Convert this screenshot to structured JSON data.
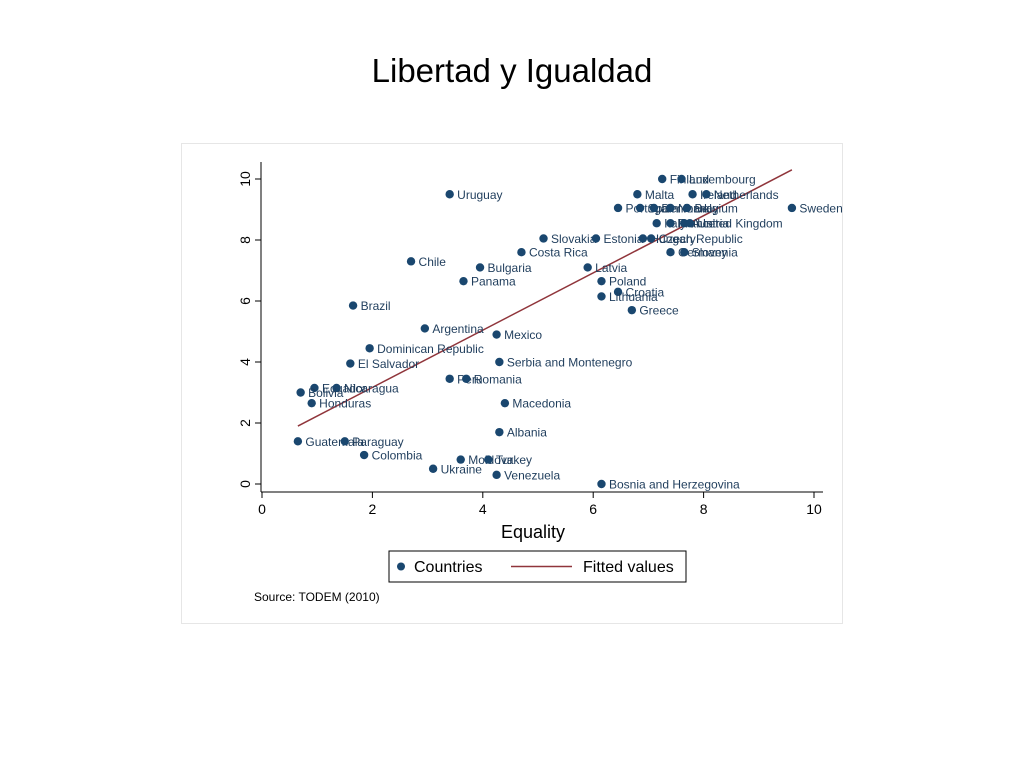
{
  "slide": {
    "title": "Libertad y Igualdad"
  },
  "colors": {
    "marker": "#1a476f",
    "fit_line": "#90353b",
    "label": "#1f3d5c"
  },
  "chart_data": {
    "type": "scatter",
    "xlabel": "Equality",
    "ylabel": "",
    "xlim": [
      0,
      10
    ],
    "ylim": [
      0,
      10
    ],
    "xticks": [
      "0",
      "2",
      "4",
      "6",
      "8",
      "10"
    ],
    "yticks": [
      "0",
      "2",
      "4",
      "6",
      "8",
      "10"
    ],
    "grid": false,
    "legend": {
      "position": "bottom",
      "entries": [
        "Countries",
        "Fitted values"
      ]
    },
    "source": "Source: TODEM (2010)",
    "series": [
      {
        "name": "Countries",
        "points": [
          {
            "label": "Finland",
            "x": 7.25,
            "y": 10.0
          },
          {
            "label": "Luxembourg",
            "x": 7.6,
            "y": 10.0
          },
          {
            "label": "Uruguay",
            "x": 3.4,
            "y": 9.5
          },
          {
            "label": "Malta",
            "x": 6.8,
            "y": 9.5
          },
          {
            "label": "Ireland",
            "x": 7.8,
            "y": 9.5
          },
          {
            "label": "Netherlands",
            "x": 8.05,
            "y": 9.5
          },
          {
            "label": "Portugal",
            "x": 6.45,
            "y": 9.05
          },
          {
            "label": "Spain",
            "x": 6.85,
            "y": 9.05
          },
          {
            "label": "Denmark",
            "x": 7.1,
            "y": 9.05
          },
          {
            "label": "Norway",
            "x": 7.4,
            "y": 9.05
          },
          {
            "label": "Belgium",
            "x": 7.7,
            "y": 9.05
          },
          {
            "label": "Sweden",
            "x": 9.6,
            "y": 9.05
          },
          {
            "label": "Italy",
            "x": 7.15,
            "y": 8.55
          },
          {
            "label": "France",
            "x": 7.4,
            "y": 8.55
          },
          {
            "label": "Austria",
            "x": 7.65,
            "y": 8.55
          },
          {
            "label": "United Kingdom",
            "x": 7.75,
            "y": 8.55
          },
          {
            "label": "Slovakia",
            "x": 5.1,
            "y": 8.05
          },
          {
            "label": "Estonia",
            "x": 6.05,
            "y": 8.05
          },
          {
            "label": "Hungary",
            "x": 6.9,
            "y": 8.05
          },
          {
            "label": "Czech Republic",
            "x": 7.05,
            "y": 8.05
          },
          {
            "label": "Costa Rica",
            "x": 4.7,
            "y": 7.6
          },
          {
            "label": "Germany",
            "x": 7.4,
            "y": 7.6
          },
          {
            "label": "Slovenia",
            "x": 7.65,
            "y": 7.6
          },
          {
            "label": "Chile",
            "x": 2.7,
            "y": 7.3
          },
          {
            "label": "Bulgaria",
            "x": 3.95,
            "y": 7.1
          },
          {
            "label": "Latvia",
            "x": 5.9,
            "y": 7.1
          },
          {
            "label": "Panama",
            "x": 3.65,
            "y": 6.65
          },
          {
            "label": "Poland",
            "x": 6.15,
            "y": 6.65
          },
          {
            "label": "Croatia",
            "x": 6.45,
            "y": 6.3
          },
          {
            "label": "Lithuania",
            "x": 6.15,
            "y": 6.15
          },
          {
            "label": "Brazil",
            "x": 1.65,
            "y": 5.85
          },
          {
            "label": "Greece",
            "x": 6.7,
            "y": 5.7
          },
          {
            "label": "Argentina",
            "x": 2.95,
            "y": 5.1
          },
          {
            "label": "Mexico",
            "x": 4.25,
            "y": 4.9
          },
          {
            "label": "Dominican Republic",
            "x": 1.95,
            "y": 4.45
          },
          {
            "label": "Serbia and Montenegro",
            "x": 4.3,
            "y": 4.0
          },
          {
            "label": "El Salvador",
            "x": 1.6,
            "y": 3.95
          },
          {
            "label": "Peru",
            "x": 3.4,
            "y": 3.45
          },
          {
            "label": "Romania",
            "x": 3.7,
            "y": 3.45
          },
          {
            "label": "Ecuador",
            "x": 0.95,
            "y": 3.15
          },
          {
            "label": "Nicaragua",
            "x": 1.35,
            "y": 3.15
          },
          {
            "label": "Bolivia",
            "x": 0.7,
            "y": 3.0
          },
          {
            "label": "Honduras",
            "x": 0.9,
            "y": 2.65
          },
          {
            "label": "Macedonia",
            "x": 4.4,
            "y": 2.65
          },
          {
            "label": "Albania",
            "x": 4.3,
            "y": 1.7
          },
          {
            "label": "Guatemala",
            "x": 0.65,
            "y": 1.4
          },
          {
            "label": "Paraguay",
            "x": 1.5,
            "y": 1.4
          },
          {
            "label": "Colombia",
            "x": 1.85,
            "y": 0.95
          },
          {
            "label": "Moldova",
            "x": 3.6,
            "y": 0.8
          },
          {
            "label": "Turkey",
            "x": 4.1,
            "y": 0.8
          },
          {
            "label": "Ukraine",
            "x": 3.1,
            "y": 0.5
          },
          {
            "label": "Venezuela",
            "x": 4.25,
            "y": 0.3
          },
          {
            "label": "Bosnia and Herzegovina",
            "x": 6.15,
            "y": 0.0
          }
        ]
      },
      {
        "name": "Fitted values",
        "type": "line",
        "x": [
          0.65,
          9.6
        ],
        "y": [
          1.9,
          10.3
        ]
      }
    ]
  }
}
